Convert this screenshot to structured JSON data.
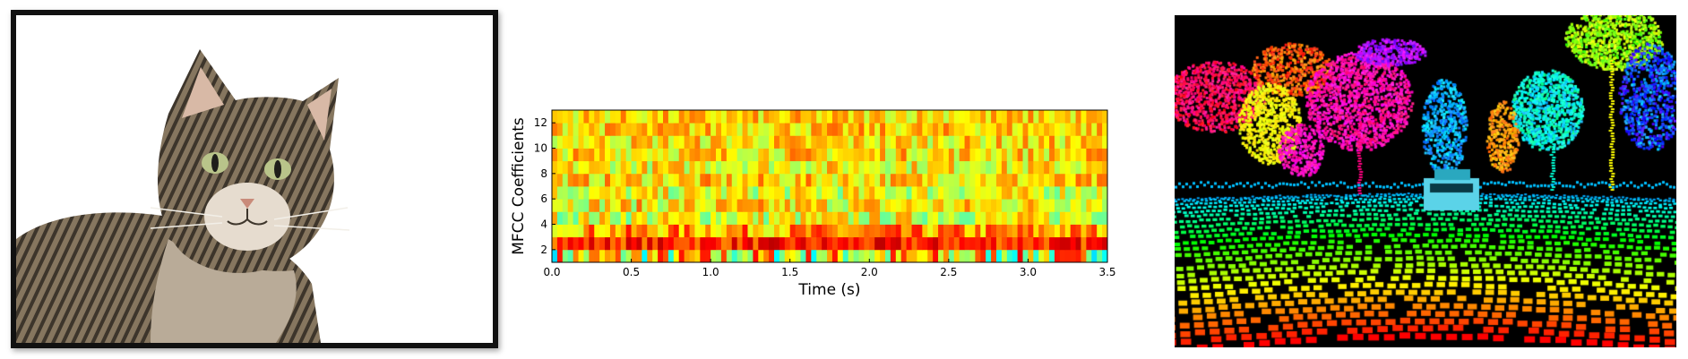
{
  "panels": {
    "photo": {
      "subject": "tabby-cat"
    },
    "lidar": {
      "subject": "lidar-point-cloud-street"
    }
  },
  "chart_data": {
    "type": "heatmap",
    "title": "",
    "xlabel": "Time (s)",
    "ylabel": "MFCC Coefficients",
    "xlim": [
      0.0,
      3.5
    ],
    "ylim": [
      1,
      13
    ],
    "x_ticks": [
      "0.0",
      "0.5",
      "1.0",
      "1.5",
      "2.0",
      "2.5",
      "3.0",
      "3.5"
    ],
    "y_ticks": [
      "2",
      "4",
      "6",
      "8",
      "10",
      "12"
    ],
    "colormap": "jet",
    "grid": false,
    "rows": 12,
    "columns": 105,
    "value_range": [
      0,
      1
    ],
    "row_profiles": [
      {
        "coefficient": 1,
        "level": 0.62,
        "spread": 0.28
      },
      {
        "coefficient": 2,
        "level": 0.84,
        "spread": 0.1
      },
      {
        "coefficient": 3,
        "level": 0.72,
        "spread": 0.14
      },
      {
        "coefficient": 4,
        "level": 0.6,
        "spread": 0.14
      },
      {
        "coefficient": 5,
        "level": 0.64,
        "spread": 0.14
      },
      {
        "coefficient": 6,
        "level": 0.6,
        "spread": 0.13
      },
      {
        "coefficient": 7,
        "level": 0.66,
        "spread": 0.12
      },
      {
        "coefficient": 8,
        "level": 0.63,
        "spread": 0.12
      },
      {
        "coefficient": 9,
        "level": 0.66,
        "spread": 0.12
      },
      {
        "coefficient": 10,
        "level": 0.65,
        "spread": 0.12
      },
      {
        "coefficient": 11,
        "level": 0.67,
        "spread": 0.11
      },
      {
        "coefficient": 12,
        "level": 0.66,
        "spread": 0.11
      }
    ]
  }
}
